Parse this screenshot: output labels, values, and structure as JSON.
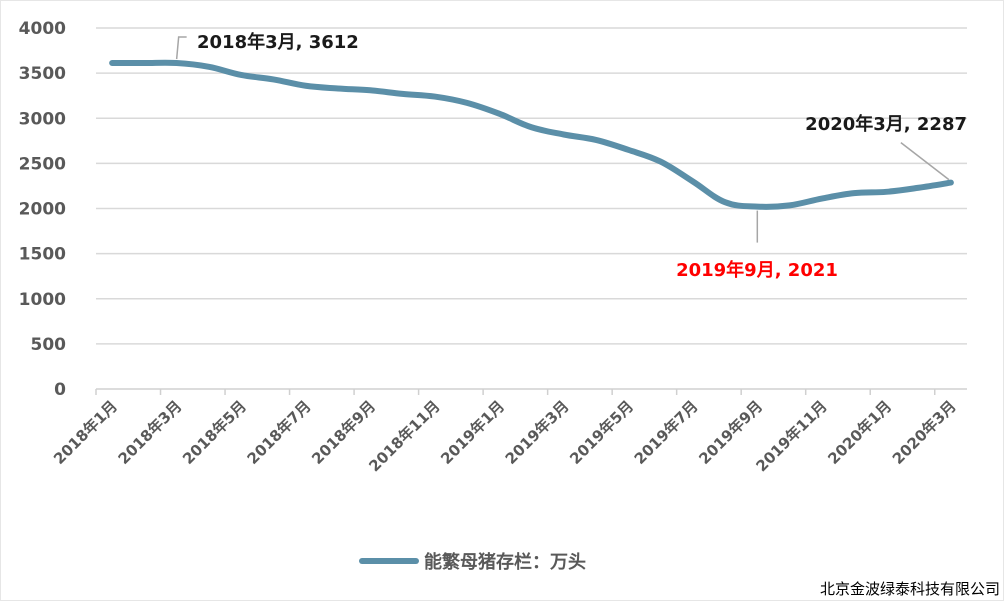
{
  "chart_data": {
    "type": "line",
    "title": "",
    "xlabel": "",
    "ylabel": "",
    "ylim": [
      0,
      4000
    ],
    "yticks": [
      0,
      500,
      1000,
      1500,
      2000,
      2500,
      3000,
      3500,
      4000
    ],
    "grid": true,
    "legend_position": "bottom",
    "x": [
      "2018年1月",
      "2018年2月",
      "2018年3月",
      "2018年4月",
      "2018年5月",
      "2018年6月",
      "2018年7月",
      "2018年8月",
      "2018年9月",
      "2018年10月",
      "2018年11月",
      "2018年12月",
      "2019年1月",
      "2019年2月",
      "2019年3月",
      "2019年4月",
      "2019年5月",
      "2019年6月",
      "2019年7月",
      "2019年8月",
      "2019年9月",
      "2019年10月",
      "2019年11月",
      "2019年12月",
      "2020年1月",
      "2020年2月",
      "2020年3月"
    ],
    "xtick_labels": [
      "2018年1月",
      "2018年3月",
      "2018年5月",
      "2018年7月",
      "2018年9月",
      "2018年11月",
      "2019年1月",
      "2019年3月",
      "2019年5月",
      "2019年7月",
      "2019年9月",
      "2019年11月",
      "2020年1月",
      "2020年3月"
    ],
    "series": [
      {
        "name": "能繁母猪存栏：万头",
        "color": "#5b8fa8",
        "values": [
          3612,
          3612,
          3612,
          3570,
          3480,
          3430,
          3360,
          3330,
          3310,
          3270,
          3240,
          3170,
          3050,
          2900,
          2820,
          2760,
          2650,
          2520,
          2300,
          2070,
          2021,
          2035,
          2110,
          2170,
          2185,
          2230,
          2287
        ]
      }
    ],
    "annotations": [
      {
        "text": "2018年3月, 3612",
        "x": "2018年3月",
        "y": 3612,
        "color": "#1a1a1a"
      },
      {
        "text": "2019年9月, 2021",
        "x": "2019年9月",
        "y": 2021,
        "color": "#ff0000"
      },
      {
        "text": "2020年3月, 2287",
        "x": "2020年3月",
        "y": 2287,
        "color": "#1a1a1a"
      }
    ]
  },
  "legend": {
    "label": "能繁母猪存栏：万头"
  },
  "source": "北京金波绿泰科技有限公司"
}
